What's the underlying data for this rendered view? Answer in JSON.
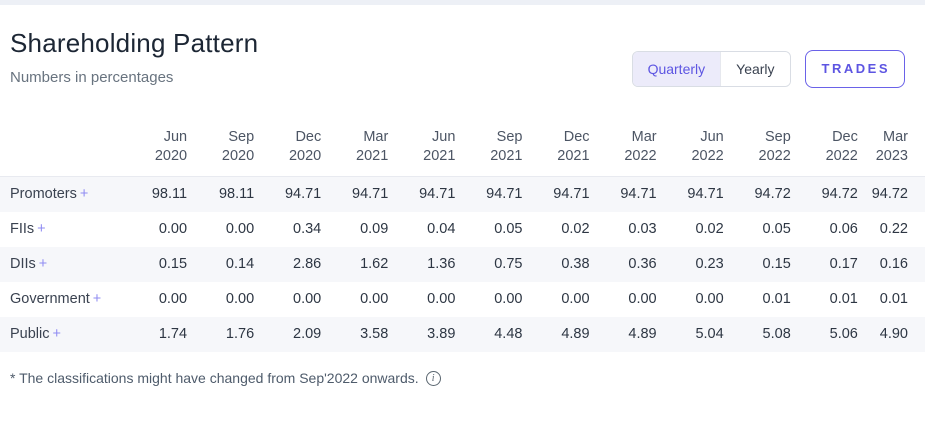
{
  "colors": {
    "accent": "#5d55e2",
    "accent_border": "#6a62e8",
    "plus_icon": "#8f8bf2",
    "row_stripe": "#f6f7fa",
    "toggle_selected_bg": "#ecebfa"
  },
  "header": {
    "title": "Shareholding Pattern",
    "subtitle": "Numbers in percentages"
  },
  "controls": {
    "period_toggle": {
      "options": [
        {
          "label": "Quarterly",
          "selected": true
        },
        {
          "label": "Yearly",
          "selected": false
        }
      ]
    },
    "trades_button_label": "TRADES"
  },
  "table": {
    "columns": [
      {
        "month": "Jun",
        "year": "2020"
      },
      {
        "month": "Sep",
        "year": "2020"
      },
      {
        "month": "Dec",
        "year": "2020"
      },
      {
        "month": "Mar",
        "year": "2021"
      },
      {
        "month": "Jun",
        "year": "2021"
      },
      {
        "month": "Sep",
        "year": "2021"
      },
      {
        "month": "Dec",
        "year": "2021"
      },
      {
        "month": "Mar",
        "year": "2022"
      },
      {
        "month": "Jun",
        "year": "2022"
      },
      {
        "month": "Sep",
        "year": "2022"
      },
      {
        "month": "Dec",
        "year": "2022"
      },
      {
        "month": "Mar",
        "year": "2023"
      }
    ],
    "rows": [
      {
        "label": "Promoters",
        "expand": "+",
        "values": [
          "98.11",
          "98.11",
          "94.71",
          "94.71",
          "94.71",
          "94.71",
          "94.71",
          "94.71",
          "94.71",
          "94.72",
          "94.72",
          "94.72"
        ]
      },
      {
        "label": "FIIs",
        "expand": "+",
        "values": [
          "0.00",
          "0.00",
          "0.34",
          "0.09",
          "0.04",
          "0.05",
          "0.02",
          "0.03",
          "0.02",
          "0.05",
          "0.06",
          "0.22"
        ]
      },
      {
        "label": "DIIs",
        "expand": "+",
        "values": [
          "0.15",
          "0.14",
          "2.86",
          "1.62",
          "1.36",
          "0.75",
          "0.38",
          "0.36",
          "0.23",
          "0.15",
          "0.17",
          "0.16"
        ]
      },
      {
        "label": "Government",
        "expand": "+",
        "values": [
          "0.00",
          "0.00",
          "0.00",
          "0.00",
          "0.00",
          "0.00",
          "0.00",
          "0.00",
          "0.00",
          "0.01",
          "0.01",
          "0.01"
        ]
      },
      {
        "label": "Public",
        "expand": "+",
        "values": [
          "1.74",
          "1.76",
          "2.09",
          "3.58",
          "3.89",
          "4.48",
          "4.89",
          "4.89",
          "5.04",
          "5.08",
          "5.06",
          "4.90"
        ]
      }
    ]
  },
  "footnote": {
    "text": "* The classifications might have changed from Sep'2022 onwards.",
    "info_glyph": "i"
  }
}
